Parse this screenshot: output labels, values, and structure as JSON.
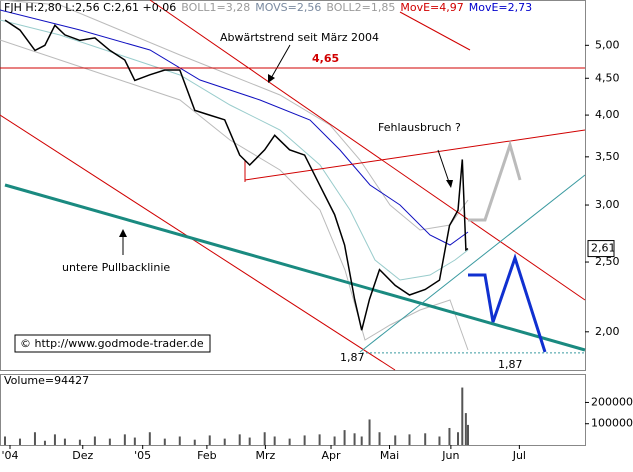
{
  "chart_data": [
    {
      "type": "line",
      "header": [
        {
          "text": "FJH H:2,80 L:2,56 C:2,61 +0,06",
          "color": "#000000"
        },
        {
          "text": "BOLL1=3,28",
          "color": "#9a9a9a"
        },
        {
          "text": "MOVS=2,56",
          "color": "#7a8aa0"
        },
        {
          "text": "BOLL2=1,85",
          "color": "#9a9a9a"
        },
        {
          "text": "MovE=4,97",
          "color": "#d00000"
        },
        {
          "text": "MovE=2,73",
          "color": "#0000cc"
        }
      ],
      "annotations": [
        "Abwärtstrend seit März 2004",
        "Fehlausbruch ?",
        "untere Pullbacklinie",
        "© http://www.godmode-trader.de"
      ],
      "levels": [
        {
          "value": 4.65,
          "label": "4,65",
          "color": "#d00000"
        },
        {
          "value": 1.87,
          "label": "1,87",
          "color": "#3a9aa0"
        }
      ],
      "last_price": {
        "value": 2.61,
        "label": "2,61"
      },
      "log_scale": true,
      "color": "#000000",
      "x": [
        0.35,
        1.4,
        2.45,
        3.15,
        3.85,
        4.55,
        5.6,
        6.65,
        7.7,
        8.75,
        9.45,
        10.5,
        11.55,
        12.6,
        13.65,
        14.7,
        15.75,
        16.8,
        17.5,
        18.55,
        19.25,
        20.3,
        21.35,
        22.4,
        23.45,
        24.15,
        24.85,
        25.35,
        25.9,
        26.6,
        27.7,
        28.7,
        29.8,
        30.8,
        31.5,
        32.1,
        32.4,
        32.65,
        32.8
      ],
      "values": [
        5.42,
        5.25,
        4.92,
        5.0,
        5.33,
        5.17,
        5.08,
        5.12,
        4.92,
        4.77,
        4.47,
        4.55,
        4.62,
        4.62,
        4.06,
        4.0,
        3.94,
        3.52,
        3.41,
        3.58,
        3.75,
        3.58,
        3.52,
        3.2,
        2.91,
        2.64,
        2.22,
        2.01,
        2.22,
        2.44,
        2.32,
        2.25,
        2.29,
        2.36,
        2.81,
        2.95,
        3.47,
        2.6,
        2.61
      ],
      "xlim": [
        0,
        41
      ],
      "xticks": [
        {
          "value": 0.7,
          "label": "'04"
        },
        {
          "value": 5.8,
          "label": "Dez"
        },
        {
          "value": 10,
          "label": "'05"
        },
        {
          "value": 14.5,
          "label": "Feb"
        },
        {
          "value": 18.6,
          "label": "Mrz"
        },
        {
          "value": 23.2,
          "label": "Apr"
        },
        {
          "value": 27.3,
          "label": "Mai"
        },
        {
          "value": 31.6,
          "label": "Jun"
        },
        {
          "value": 36.4,
          "label": "Jul"
        }
      ],
      "ylim": [
        1.77,
        5.78
      ],
      "yticks": [
        {
          "value": 2,
          "label": "2,00"
        },
        {
          "value": 2.5,
          "label": "2,50"
        },
        {
          "value": 3,
          "label": "3,00"
        },
        {
          "value": 3.5,
          "label": "3,50"
        },
        {
          "value": 4,
          "label": "4,00"
        },
        {
          "value": 4.5,
          "label": "4,50"
        },
        {
          "value": 5,
          "label": "5,00"
        }
      ]
    },
    {
      "type": "bar",
      "title": "Volume=94427",
      "color": "#555555",
      "values": [
        40000,
        30000,
        60000,
        20000,
        50000,
        30000,
        25000,
        40000,
        30000,
        50000,
        35000,
        60000,
        30000,
        40000,
        25000,
        45000,
        30000,
        50000,
        35000,
        60000,
        40000,
        30000,
        45000,
        50000,
        40000,
        70000,
        55000,
        40000,
        120000,
        60000,
        45000,
        50000,
        55000,
        40000,
        80000,
        60000,
        270000,
        150000,
        94427
      ],
      "ylim": [
        0,
        329000
      ],
      "yticks": [
        100000,
        200000
      ]
    }
  ]
}
